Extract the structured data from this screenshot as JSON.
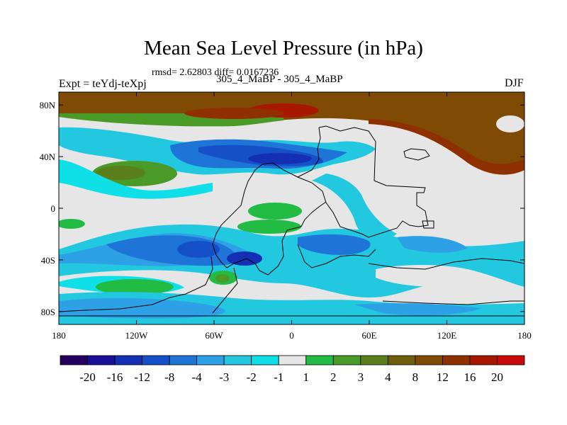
{
  "title": "Mean Sea Level Pressure (in hPa)",
  "stats": "rmsd= 2.62803 diff= 0.0167236",
  "left_label": "Expt = teYdj-teXpj",
  "center_label": "305_4_MaBP - 305_4_MaBP",
  "right_label": "DJF",
  "map": {
    "lon_range": [
      -180,
      180
    ],
    "lat_range": [
      -90,
      90
    ],
    "x_ticks": [
      {
        "lon": -180,
        "label": "180"
      },
      {
        "lon": -120,
        "label": "120W"
      },
      {
        "lon": -60,
        "label": "60W"
      },
      {
        "lon": 0,
        "label": "0"
      },
      {
        "lon": 60,
        "label": "60E"
      },
      {
        "lon": 120,
        "label": "120E"
      },
      {
        "lon": 180,
        "label": "180"
      }
    ],
    "y_ticks": [
      {
        "lat": 80,
        "label": "80N"
      },
      {
        "lat": 40,
        "label": "40N"
      },
      {
        "lat": 0,
        "label": "0"
      },
      {
        "lat": -40,
        "label": "40S"
      },
      {
        "lat": -80,
        "label": "80S"
      }
    ]
  },
  "colorbar": {
    "colors": [
      "#24005f",
      "#1a0e96",
      "#152fb4",
      "#1650c8",
      "#1f74d8",
      "#2ea0e6",
      "#22c8e0",
      "#0fe0e8",
      "#e6e6e6",
      "#22bb44",
      "#4a9a28",
      "#5a7e1a",
      "#6e5e0c",
      "#7e4a04",
      "#8e3000",
      "#a81800",
      "#c80a0a"
    ],
    "labels": [
      "-20",
      "-16",
      "-12",
      "-8",
      "-4",
      "-3",
      "-2",
      "-1",
      "1",
      "2",
      "3",
      "4",
      "8",
      "12",
      "16",
      "20"
    ]
  }
}
